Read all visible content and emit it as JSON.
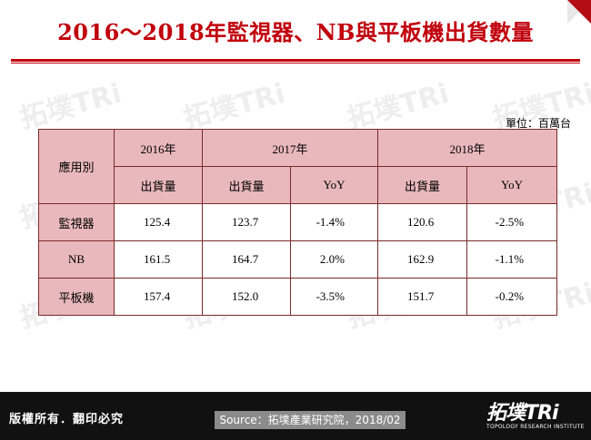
{
  "title": "2016～2018年監視器、NB與平板機出貨數量",
  "unit": "單位：百萬台",
  "watermark": "拓墣TRi",
  "table": {
    "corner": "應用別",
    "years": [
      "2016年",
      "2017年",
      "2018年"
    ],
    "subheaders": [
      "出貨量",
      "出貨量",
      "YoY",
      "出貨量",
      "YoY"
    ],
    "rows": [
      {
        "label": "監視器",
        "v2016": "125.4",
        "v2017": "123.7",
        "yoy2017": "-1.4%",
        "v2018": "120.6",
        "yoy2018": "-2.5%"
      },
      {
        "label": "NB",
        "v2016": "161.5",
        "v2017": "164.7",
        "yoy2017": "2.0%",
        "v2018": "162.9",
        "yoy2018": "-1.1%"
      },
      {
        "label": "平板機",
        "v2016": "157.4",
        "v2017": "152.0",
        "yoy2017": "-3.5%",
        "v2018": "151.7",
        "yoy2018": "-0.2%"
      }
    ]
  },
  "footer": {
    "copyright": "版權所有．翻印必究",
    "source": "Source：拓墣產業研究院，2018/02",
    "logo_main": "拓墣",
    "logo_tri": "TRi",
    "logo_sub": "TOPOLOGY RESEARCH INSTITUTE"
  },
  "colors": {
    "title": "#c0000c",
    "header_fill": "#e9b8bc",
    "footer_bg": "#111111",
    "source_bg": "#8b8b8b"
  }
}
